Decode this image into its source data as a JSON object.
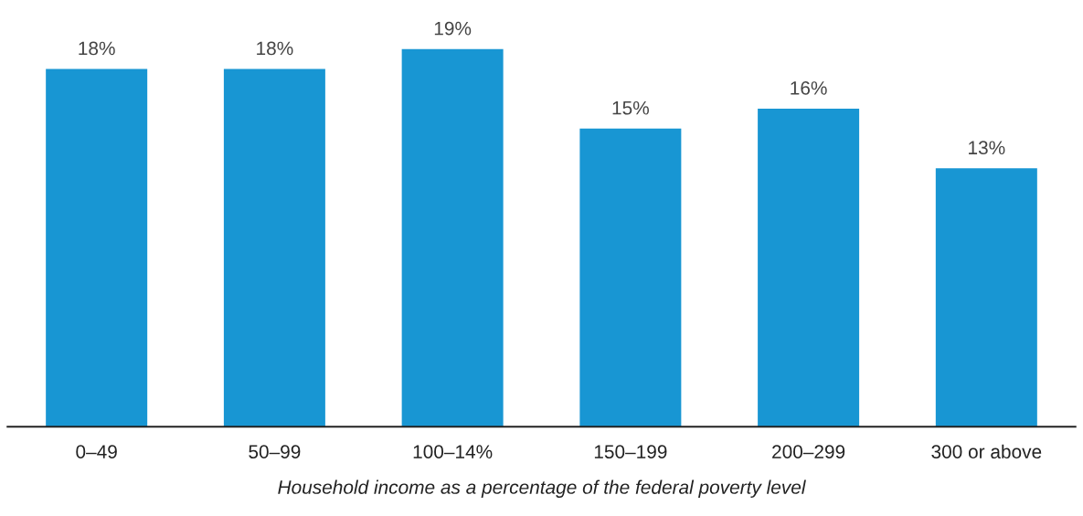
{
  "chart_data": {
    "type": "bar",
    "xlabel": "Household income as a percentage of the federal poverty level",
    "categories": [
      "0–49",
      "50–99",
      "100–14%",
      "150–199",
      "200–299",
      "300 or above"
    ],
    "values": [
      18,
      18,
      19,
      15,
      16,
      13
    ],
    "value_labels": [
      "18%",
      "18%",
      "19%",
      "15%",
      "16%",
      "13%"
    ],
    "color": "#1896d3",
    "grid": false,
    "legend": false
  }
}
